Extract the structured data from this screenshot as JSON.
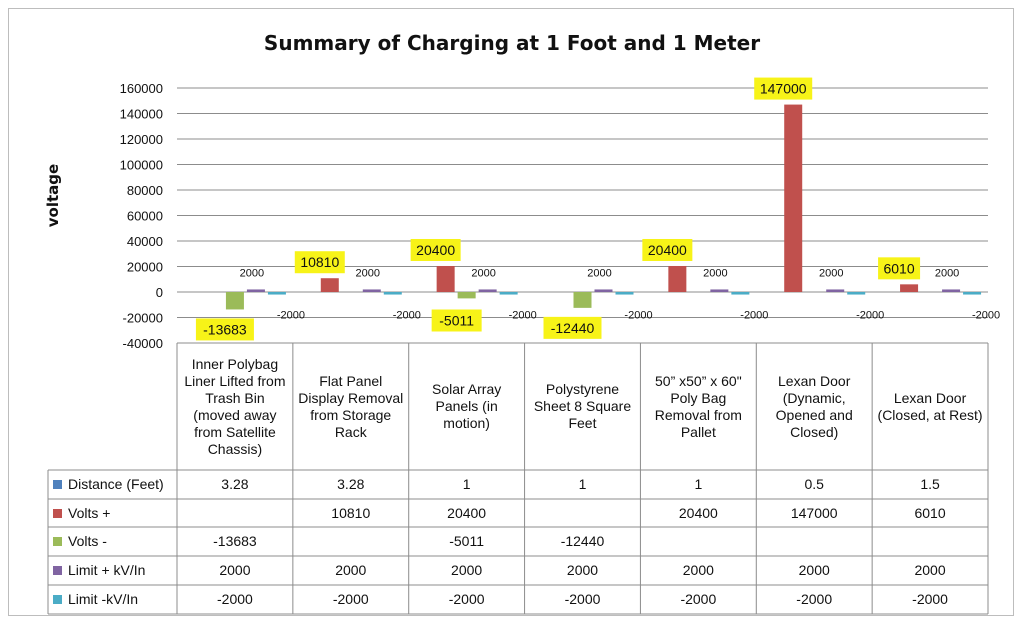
{
  "chart_data": {
    "type": "bar",
    "title": "Summary of Charging at 1 Foot and 1 Meter",
    "ylabel": "voltage",
    "xlabel": "",
    "ylim": [
      -40000,
      160000
    ],
    "yticks": [
      "160000",
      "140000",
      "120000",
      "100000",
      "80000",
      "60000",
      "40000",
      "20000",
      "0",
      "-20000",
      "-40000"
    ],
    "grid": true,
    "legend": "table",
    "categories": [
      "Inner Polybag Liner Lifted from Trash Bin (moved away from Satellite Chassis)",
      "Flat Panel Display Removal from Storage Rack",
      "Solar Array Panels (in motion)",
      "Polystyrene Sheet  8 Square Feet",
      "50” x50” x 60\" Poly Bag Removal from Pallet",
      "Lexan Door (Dynamic, Opened and Closed)",
      "Lexan Door (Closed, at Rest)"
    ],
    "series": [
      {
        "name": "Distance (Feet)",
        "color": "#4f81bd",
        "values": [
          3.28,
          3.28,
          1,
          1,
          1,
          0.5,
          1.5
        ],
        "labels": [
          "3.28",
          "3.28",
          "1",
          "1",
          "1",
          "0.5",
          "1.5"
        ]
      },
      {
        "name": "Volts +",
        "color": "#c0504d",
        "values": [
          null,
          10810,
          20400,
          null,
          20400,
          147000,
          6010
        ],
        "labels": [
          "",
          "10810",
          "20400",
          "",
          "20400",
          "147000",
          "6010"
        ]
      },
      {
        "name": "Volts -",
        "color": "#9bbb59",
        "values": [
          -13683,
          null,
          -5011,
          -12440,
          null,
          null,
          null
        ],
        "labels": [
          "-13683",
          "",
          "-5011",
          "-12440",
          "",
          "",
          ""
        ]
      },
      {
        "name": "Limit + kV/In",
        "color": "#8064a2",
        "values": [
          2000,
          2000,
          2000,
          2000,
          2000,
          2000,
          2000
        ],
        "labels": [
          "2000",
          "2000",
          "2000",
          "2000",
          "2000",
          "2000",
          "2000"
        ]
      },
      {
        "name": "Limit -kV/In",
        "color": "#4bacc6",
        "values": [
          -2000,
          -2000,
          -2000,
          -2000,
          -2000,
          -2000,
          -2000
        ],
        "labels": [
          "-2000",
          "-2000",
          "-2000",
          "-2000",
          "-2000",
          "-2000",
          "-2000"
        ]
      }
    ],
    "highlight_color": "#f7f318"
  }
}
